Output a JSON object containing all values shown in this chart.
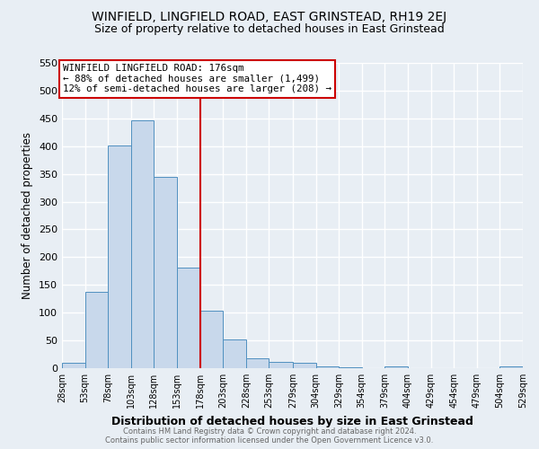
{
  "title": "WINFIELD, LINGFIELD ROAD, EAST GRINSTEAD, RH19 2EJ",
  "subtitle": "Size of property relative to detached houses in East Grinstead",
  "xlabel": "Distribution of detached houses by size in East Grinstead",
  "ylabel": "Number of detached properties",
  "bar_color": "#c8d8eb",
  "bar_edge_color": "#5090c0",
  "bin_edges": [
    28,
    53,
    78,
    103,
    128,
    153,
    178,
    203,
    228,
    253,
    279,
    304,
    329,
    354,
    379,
    404,
    429,
    454,
    479,
    504,
    529
  ],
  "bar_heights": [
    10,
    137,
    401,
    447,
    345,
    181,
    103,
    51,
    17,
    11,
    10,
    4,
    1,
    0,
    4,
    0,
    0,
    0,
    0,
    3
  ],
  "vline_x": 178,
  "vline_color": "#cc0000",
  "annotation_title": "WINFIELD LINGFIELD ROAD: 176sqm",
  "annotation_line1": "← 88% of detached houses are smaller (1,499)",
  "annotation_line2": "12% of semi-detached houses are larger (208) →",
  "annotation_box_color": "#cc0000",
  "ylim": [
    0,
    550
  ],
  "yticks": [
    0,
    50,
    100,
    150,
    200,
    250,
    300,
    350,
    400,
    450,
    500,
    550
  ],
  "tick_labels": [
    "28sqm",
    "53sqm",
    "78sqm",
    "103sqm",
    "128sqm",
    "153sqm",
    "178sqm",
    "203sqm",
    "228sqm",
    "253sqm",
    "279sqm",
    "304sqm",
    "329sqm",
    "354sqm",
    "379sqm",
    "404sqm",
    "429sqm",
    "454sqm",
    "479sqm",
    "504sqm",
    "529sqm"
  ],
  "footer_line1": "Contains HM Land Registry data © Crown copyright and database right 2024.",
  "footer_line2": "Contains public sector information licensed under the Open Government Licence v3.0.",
  "bg_color": "#e8eef4",
  "plot_bg_color": "#e8eef4",
  "grid_color": "#ffffff",
  "title_fontsize": 10,
  "subtitle_fontsize": 9,
  "xlabel_fontsize": 9,
  "xlabel_fontweight": "bold"
}
